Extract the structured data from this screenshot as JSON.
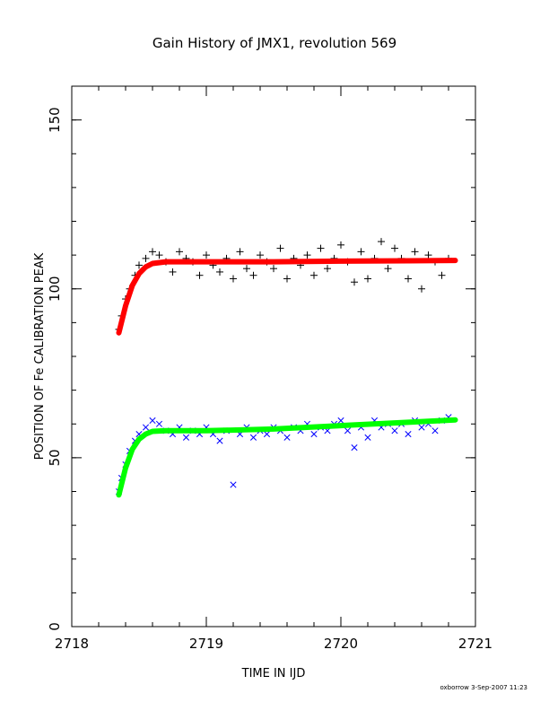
{
  "chart_data": {
    "type": "scatter",
    "title": "Gain History of JMX1, revolution 569",
    "xlabel": "TIME IN IJD",
    "ylabel": "POSITION OF Fe CALIBRATION PEAK",
    "xlim": [
      2718.0,
      2721.0
    ],
    "ylim": [
      0,
      160
    ],
    "x_major_ticks": [
      2718,
      2719,
      2720,
      2721
    ],
    "y_major_ticks": [
      0,
      50,
      100,
      150
    ],
    "x_minor_step": 0.2,
    "y_minor_step": 10,
    "grid": false,
    "legend": "none",
    "series": [
      {
        "marker": "plus",
        "color": "#000000",
        "x": [
          2718.35,
          2718.37,
          2718.4,
          2718.43,
          2718.47,
          2718.5,
          2718.55,
          2718.6,
          2718.65,
          2718.7,
          2718.75,
          2718.8,
          2718.85,
          2718.9,
          2718.95,
          2719.0,
          2719.05,
          2719.1,
          2719.15,
          2719.2,
          2719.25,
          2719.3,
          2719.35,
          2719.4,
          2719.45,
          2719.5,
          2719.55,
          2719.6,
          2719.65,
          2719.7,
          2719.75,
          2719.8,
          2719.85,
          2719.9,
          2719.95,
          2720.0,
          2720.05,
          2720.1,
          2720.15,
          2720.2,
          2720.25,
          2720.3,
          2720.35,
          2720.4,
          2720.45,
          2720.5,
          2720.55,
          2720.6,
          2720.65,
          2720.7,
          2720.75,
          2720.8
        ],
        "y": [
          88,
          92,
          97,
          100,
          104,
          107,
          109,
          111,
          110,
          108,
          105,
          111,
          109,
          108,
          104,
          110,
          107,
          105,
          109,
          103,
          111,
          106,
          104,
          110,
          108,
          106,
          112,
          103,
          109,
          107,
          110,
          104,
          112,
          106,
          109,
          113,
          108,
          102,
          111,
          103,
          109,
          114,
          106,
          112,
          109,
          103,
          111,
          100,
          110,
          108,
          104,
          109
        ]
      },
      {
        "marker": "cross",
        "color": "#0000ff",
        "x": [
          2718.35,
          2718.37,
          2718.4,
          2718.43,
          2718.47,
          2718.5,
          2718.55,
          2718.6,
          2718.65,
          2718.7,
          2718.75,
          2718.8,
          2718.85,
          2718.9,
          2718.95,
          2719.0,
          2719.05,
          2719.1,
          2719.15,
          2719.2,
          2719.25,
          2719.3,
          2719.35,
          2719.4,
          2719.45,
          2719.5,
          2719.55,
          2719.6,
          2719.65,
          2719.7,
          2719.75,
          2719.8,
          2719.85,
          2719.9,
          2719.95,
          2720.0,
          2720.05,
          2720.1,
          2720.15,
          2720.2,
          2720.25,
          2720.3,
          2720.35,
          2720.4,
          2720.45,
          2720.5,
          2720.55,
          2720.6,
          2720.65,
          2720.7,
          2720.75,
          2720.8
        ],
        "y": [
          40,
          44,
          48,
          52,
          55,
          57,
          59,
          61,
          60,
          58,
          57,
          59,
          56,
          58,
          57,
          59,
          57,
          55,
          58,
          42,
          57,
          59,
          56,
          58,
          57,
          59,
          58,
          56,
          59,
          58,
          60,
          57,
          59,
          58,
          60,
          61,
          58,
          53,
          59,
          56,
          61,
          59,
          60,
          58,
          60,
          57,
          61,
          59,
          60,
          58,
          61,
          62
        ]
      },
      {
        "marker": "line",
        "color": "#ff0000",
        "x": [
          2718.35,
          2718.4,
          2718.45,
          2718.5,
          2718.55,
          2718.6,
          2718.7,
          2718.8,
          2719.0,
          2719.5,
          2720.0,
          2720.5,
          2720.85
        ],
        "y": [
          87,
          95,
          101,
          104.5,
          106.5,
          107.5,
          108,
          108,
          108,
          108,
          108.2,
          108.3,
          108.4
        ]
      },
      {
        "marker": "line",
        "color": "#00ff00",
        "x": [
          2718.35,
          2718.4,
          2718.45,
          2718.5,
          2718.55,
          2718.6,
          2718.7,
          2718.8,
          2719.0,
          2719.5,
          2720.0,
          2720.5,
          2720.85
        ],
        "y": [
          39,
          47,
          52.5,
          55.5,
          57,
          57.8,
          58,
          58,
          58,
          58.5,
          59.5,
          60.5,
          61.2
        ]
      }
    ]
  },
  "footer": "oxborrow  3-Sep-2007 11:23"
}
